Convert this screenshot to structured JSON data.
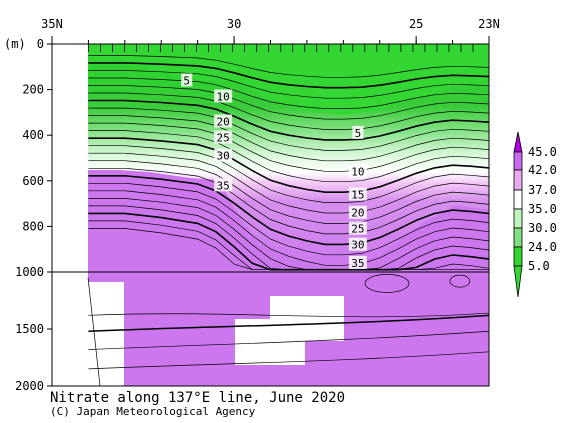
{
  "chart_data": {
    "type": "contour",
    "title": "Nitrate along 137°E line, June 2020",
    "credit": "(C) Japan Meteorological Agency",
    "x_axis": {
      "labels": [
        "35N",
        "30",
        "25",
        "23N"
      ],
      "values": [
        35,
        30,
        25,
        23
      ],
      "range": [
        35,
        23
      ]
    },
    "y_axis": {
      "unit": "(m)",
      "upper": {
        "labels": [
          "0",
          "200",
          "400",
          "600",
          "800",
          "1000"
        ],
        "range": [
          0,
          1000
        ]
      },
      "lower": {
        "labels": [
          "1500",
          "2000"
        ],
        "range": [
          1000,
          2000
        ]
      }
    },
    "legend": {
      "labels": [
        "45.0",
        "42.0",
        "37.0",
        "35.0",
        "30.0",
        "24.0",
        "5.0"
      ],
      "colors": [
        "#b000e6",
        "#c96af0",
        "#e9aaf1",
        "#ffffff",
        "#bff5bf",
        "#7ee07e",
        "#33d633"
      ]
    },
    "contour_labels": [
      {
        "text": "5",
        "lat": 31.3,
        "depth": 160
      },
      {
        "text": "10",
        "lat": 30.3,
        "depth": 230
      },
      {
        "text": "20",
        "lat": 30.3,
        "depth": 340
      },
      {
        "text": "25",
        "lat": 30.3,
        "depth": 410
      },
      {
        "text": "30",
        "lat": 30.3,
        "depth": 490
      },
      {
        "text": "35",
        "lat": 30.3,
        "depth": 620
      },
      {
        "text": "5",
        "lat": 26.6,
        "depth": 390
      },
      {
        "text": "10",
        "lat": 26.6,
        "depth": 560
      },
      {
        "text": "15",
        "lat": 26.6,
        "depth": 660
      },
      {
        "text": "20",
        "lat": 26.6,
        "depth": 740
      },
      {
        "text": "25",
        "lat": 26.6,
        "depth": 810
      },
      {
        "text": "30",
        "lat": 26.6,
        "depth": 880
      },
      {
        "text": "35",
        "lat": 26.6,
        "depth": 960
      }
    ]
  }
}
